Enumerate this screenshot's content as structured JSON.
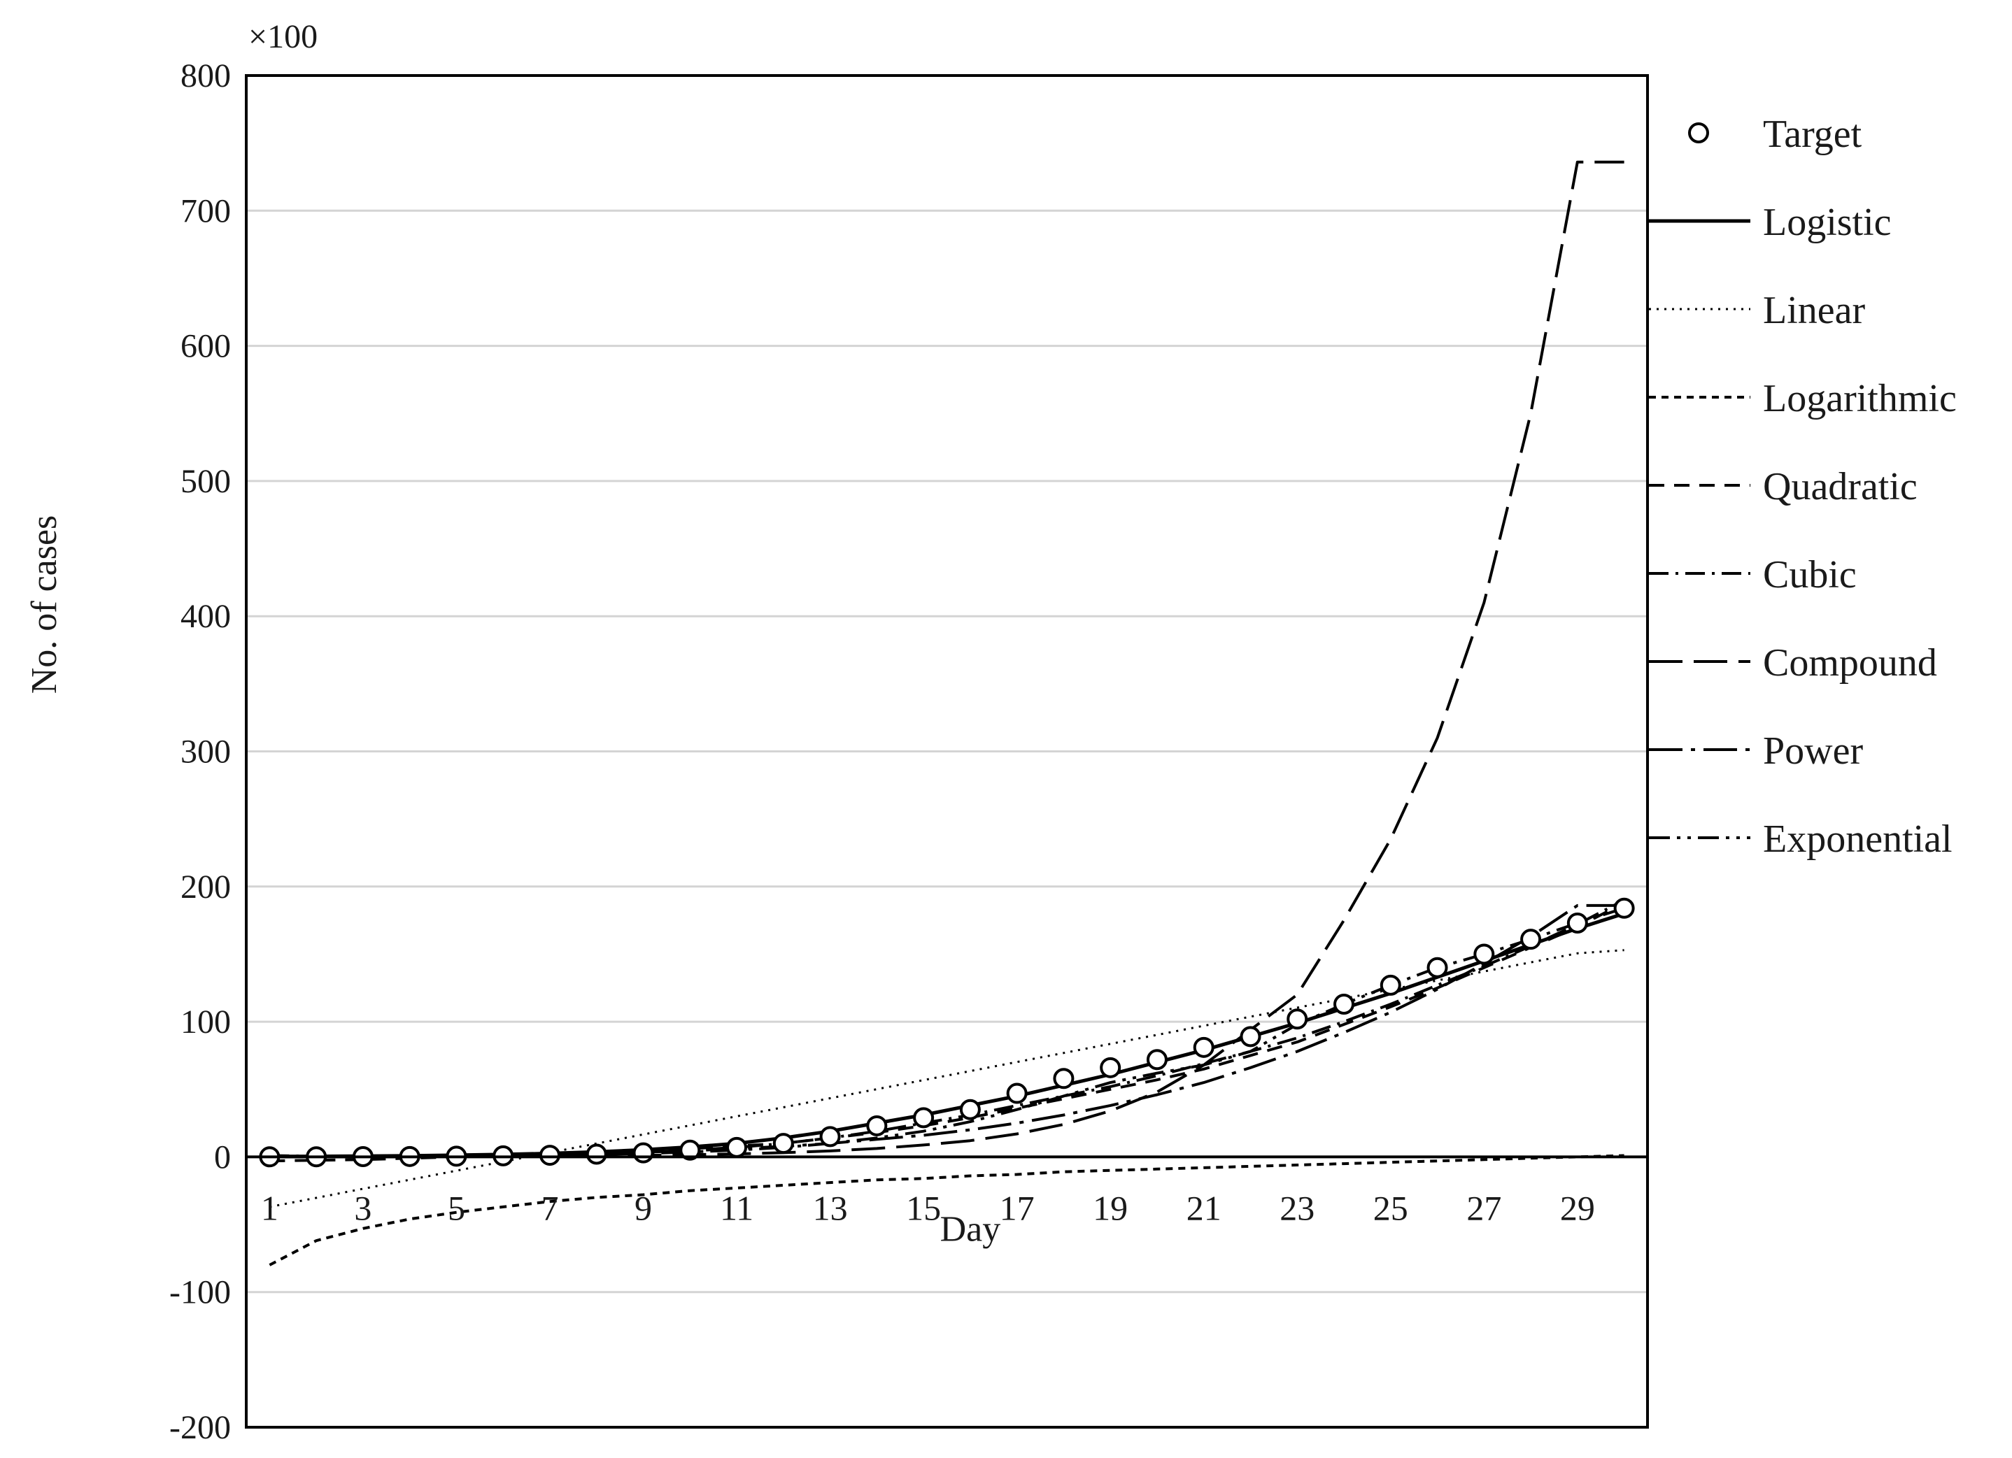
{
  "chart_data": {
    "type": "line",
    "xlabel": "Day",
    "ylabel": "No. of cases",
    "y_multiplier_label": "×100",
    "xlim": [
      0.5,
      30.5
    ],
    "ylim": [
      -200,
      800
    ],
    "y_ticks": [
      -200,
      -100,
      0,
      100,
      200,
      300,
      400,
      500,
      600,
      700,
      800
    ],
    "x_ticks": [
      1,
      3,
      5,
      7,
      9,
      11,
      13,
      15,
      17,
      19,
      21,
      23,
      25,
      27,
      29
    ],
    "grid": "horizontal",
    "legend_position": "right",
    "x": [
      1,
      2,
      3,
      4,
      5,
      6,
      7,
      8,
      9,
      10,
      11,
      12,
      13,
      14,
      15,
      16,
      17,
      18,
      19,
      20,
      21,
      22,
      23,
      24,
      25,
      26,
      27,
      28,
      29,
      30
    ],
    "series": [
      {
        "name": "Target",
        "style": "marker-circle",
        "values": [
          0.05,
          0.1,
          0.2,
          0.3,
          0.5,
          0.8,
          1.2,
          2,
          3,
          5,
          7,
          10,
          15,
          23,
          29,
          35,
          47,
          58,
          66,
          72,
          81,
          89,
          102,
          113,
          127,
          140,
          150,
          161,
          173,
          184
        ]
      },
      {
        "name": "Logistic",
        "style": "solid",
        "values": [
          0.3,
          0.4,
          0.6,
          0.9,
          1.3,
          1.8,
          2.6,
          3.7,
          5.2,
          7.3,
          10,
          14,
          19,
          25,
          31,
          38,
          45,
          53,
          61,
          70,
          79,
          89,
          99,
          110,
          121,
          133,
          145,
          157,
          169,
          180
        ]
      },
      {
        "name": "Linear",
        "style": "dotted",
        "values": [
          -37,
          -30.3,
          -23.6,
          -16.9,
          -10.2,
          -3.5,
          3.2,
          9.9,
          16.6,
          23.3,
          30,
          36.7,
          43.4,
          50.1,
          56.8,
          63.5,
          70.2,
          76.9,
          83.6,
          90.3,
          97,
          103.7,
          110.4,
          117.1,
          123.8,
          130.5,
          137.2,
          143.9,
          150.6,
          153
        ]
      },
      {
        "name": "Logarithmic",
        "style": "short-dash",
        "values": [
          -80,
          -62,
          -53,
          -46,
          -41,
          -37,
          -33,
          -30,
          -28,
          -25,
          -23,
          -21,
          -19,
          -17,
          -16,
          -14,
          -13,
          -11,
          -10,
          -9,
          -8,
          -7,
          -6,
          -5,
          -4,
          -3,
          -2,
          -1,
          0,
          1
        ]
      },
      {
        "name": "Quadratic",
        "style": "dash",
        "values": [
          -3,
          -2.5,
          -2,
          -1,
          0,
          1,
          2,
          3,
          4,
          6,
          8,
          10,
          14,
          18,
          23,
          29,
          36,
          43,
          50,
          57,
          65,
          75,
          85,
          98,
          111,
          125,
          140,
          155,
          170,
          188
        ]
      },
      {
        "name": "Cubic",
        "style": "dash-dot",
        "values": [
          1,
          0.5,
          0,
          0,
          0.5,
          1,
          1.5,
          2.5,
          3.5,
          5,
          7,
          10,
          14,
          19,
          25,
          31,
          38,
          45,
          52,
          60,
          69,
          78,
          88,
          100,
          113,
          127,
          141,
          156,
          172,
          190
        ]
      },
      {
        "name": "Compound",
        "style": "long-dash",
        "values": [
          0.1,
          0.1,
          0.15,
          0.2,
          0.3,
          0.4,
          0.6,
          0.8,
          1.1,
          1.6,
          2.2,
          3.1,
          4.4,
          6.2,
          8.8,
          12,
          17,
          24,
          34,
          48,
          68,
          94,
          120,
          175,
          235,
          310,
          410,
          550,
          736,
          736
        ]
      },
      {
        "name": "Power",
        "style": "long-dash-dot",
        "values": [
          0,
          0,
          0.1,
          0.3,
          0.6,
          1,
          1.6,
          2.4,
          3.4,
          4.6,
          6,
          7.8,
          10,
          13,
          16,
          20,
          25,
          31,
          38,
          46,
          55,
          66,
          78,
          92,
          107,
          124,
          143,
          163,
          186,
          186
        ]
      },
      {
        "name": "Exponential",
        "style": "dash-dot-dot",
        "values": [
          0,
          0,
          0.1,
          0.2,
          0.4,
          0.7,
          1.1,
          1.7,
          2.5,
          3.6,
          5,
          7,
          10,
          14,
          19,
          26,
          35,
          45,
          55,
          62,
          68,
          78,
          98,
          113,
          127,
          140,
          150,
          161,
          173,
          184
        ]
      }
    ]
  }
}
